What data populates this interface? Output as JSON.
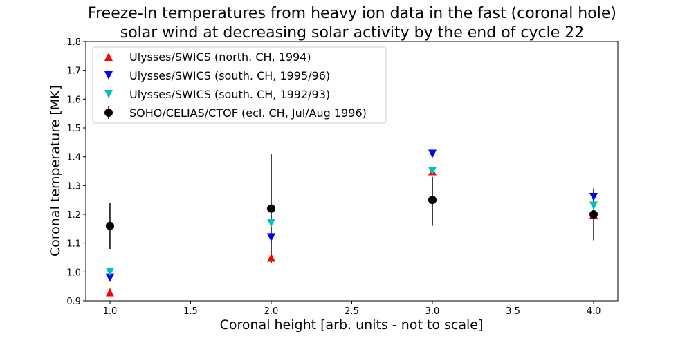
{
  "chart_data": {
    "type": "scatter",
    "title_line1": "Freeze-In temperatures from heavy ion data in the fast (coronal hole)",
    "title_line2": "solar wind at decreasing solar activity by the end of cycle 22",
    "xlabel": "Coronal height [arb. units - not to scale]",
    "ylabel": "Coronal temperature [MK]",
    "xlim": [
      0.85,
      4.15
    ],
    "ylim": [
      0.9,
      1.8
    ],
    "xticks": [
      "1.0",
      "1.5",
      "2.0",
      "2.5",
      "3.0",
      "3.5",
      "4.0"
    ],
    "yticks": [
      "0.9",
      "1.0",
      "1.1",
      "1.2",
      "1.3",
      "1.4",
      "1.5",
      "1.6",
      "1.7",
      "1.8"
    ],
    "grid": false,
    "legend_position": "upper-left",
    "series": [
      {
        "name": "Ulysses/SWICS (north. CH, 1994)",
        "marker": "triangle-up",
        "color": "#ff0000",
        "x": [
          1.0,
          2.0,
          3.0,
          4.0
        ],
        "y": [
          0.93,
          1.05,
          1.35,
          1.2
        ]
      },
      {
        "name": "Ulysses/SWICS (south. CH, 1995/96)",
        "marker": "triangle-down",
        "color": "#0000ff",
        "x": [
          1.0,
          2.0,
          3.0,
          4.0
        ],
        "y": [
          0.98,
          1.12,
          1.41,
          1.26
        ]
      },
      {
        "name": "Ulysses/SWICS (south. CH, 1992/93)",
        "marker": "triangle-down",
        "color": "#00bfbf",
        "x": [
          1.0,
          2.0,
          3.0,
          4.0
        ],
        "y": [
          1.0,
          1.17,
          1.35,
          1.23
        ]
      },
      {
        "name": "SOHO/CELIAS/CTOF (ecl. CH, Jul/Aug 1996)",
        "marker": "circle",
        "color": "#000000",
        "x": [
          1.0,
          2.0,
          3.0,
          4.0
        ],
        "y": [
          1.16,
          1.22,
          1.25,
          1.2
        ],
        "yerr_low": [
          1.08,
          1.03,
          1.16,
          1.11
        ],
        "yerr_high": [
          1.24,
          1.41,
          1.33,
          1.29
        ]
      }
    ]
  }
}
